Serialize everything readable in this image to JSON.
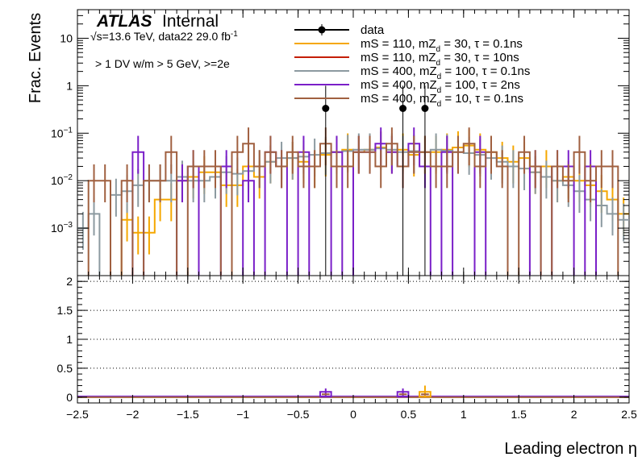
{
  "chart_data": {
    "type": "histogram",
    "atlas_label": "ATLAS",
    "atlas_sublabel": "Internal",
    "energy_label": "√s=13.6 TeV, data22 29.0 fb",
    "energy_unit_exp": "-1",
    "selection_label": "> 1 DV w/m > 5 GeV, >=2e",
    "xlabel": "Leading electron η",
    "ylabel": "Frac. Events",
    "xlim": [
      -2.5,
      2.5
    ],
    "x_ticks": [
      -2.5,
      -2,
      -1.5,
      -1,
      -0.5,
      0,
      0.5,
      1,
      1.5,
      2,
      2.5
    ],
    "x_tick_labels": [
      "−2.5",
      "−2",
      "−1.5",
      "−1",
      "−0.5",
      "0",
      "0.5",
      "1",
      "1.5",
      "2",
      "2.5"
    ],
    "top": {
      "yscale": "log",
      "ylim": [
        0.0001,
        40
      ],
      "y_ticks": [
        0.001,
        0.01,
        0.1,
        1,
        10
      ],
      "y_tick_labels": [
        [
          "10",
          "−3"
        ],
        [
          "10",
          "−2"
        ],
        [
          "10",
          "−1"
        ],
        [
          "1",
          ""
        ],
        [
          "10",
          ""
        ]
      ]
    },
    "ratio": {
      "ylim": [
        -0.1,
        2.1
      ],
      "y_ticks": [
        0,
        0.5,
        1,
        1.5,
        2
      ],
      "y_tick_labels": [
        "0",
        "0.5",
        "1",
        "1.5",
        "2"
      ],
      "gridlines": [
        0.5,
        1,
        1.5,
        2
      ]
    },
    "legend": [
      {
        "label": "data",
        "color": "#000000",
        "marker": true
      },
      {
        "label": "mS = 110, mZ",
        "sub": "d",
        "tail": " = 30, τ = 0.1ns",
        "color": "#f5a700"
      },
      {
        "label": "mS = 110, mZ",
        "sub": "d",
        "tail": " = 30, τ = 10ns",
        "color": "#c41e04"
      },
      {
        "label": "mS = 400, mZ",
        "sub": "d",
        "tail": " = 100, τ = 0.1ns",
        "color": "#8c9aa0"
      },
      {
        "label": "mS = 400, mZ",
        "sub": "d",
        "tail": " = 100, τ = 2ns",
        "color": "#7a1fc8"
      },
      {
        "label": "mS = 400, mZ",
        "sub": "d",
        "tail": " = 10, τ = 0.1ns",
        "color": "#a06040"
      }
    ],
    "data_points": [
      {
        "x": -0.25,
        "y": 0.333,
        "ratio": 0.05
      },
      {
        "x": 0.45,
        "y": 0.333,
        "ratio": 0.05
      },
      {
        "x": 0.65,
        "y": 0.333,
        "ratio": 0.05
      }
    ],
    "bin_edges_start": -2.5,
    "bin_width": 0.1,
    "series": [
      {
        "color": "#f5a700",
        "values": [
          0,
          0,
          0,
          0,
          0.0015,
          0.0008,
          0.0008,
          0.004,
          0.004,
          0.01,
          0.012,
          0.015,
          0.015,
          0.008,
          0.008,
          0.02,
          0.012,
          0.025,
          0.02,
          0.03,
          0.025,
          0.02,
          0.035,
          0.04,
          0.045,
          0.04,
          0.045,
          0.05,
          0.04,
          0.045,
          0.035,
          0.04,
          0.04,
          0.045,
          0.05,
          0.055,
          0.045,
          0.04,
          0.03,
          0.025,
          0.03,
          0.015,
          0.02,
          0.01,
          0.012,
          0.01,
          0.008,
          0.006,
          0.004,
          0.002
        ]
      },
      {
        "color": "#8c9aa0",
        "values": [
          0.001,
          0.002,
          0,
          0.005,
          0.006,
          0.008,
          0.01,
          0.01,
          0.01,
          0.012,
          0.01,
          0.01,
          0.012,
          0.015,
          0.014,
          0.016,
          0.02,
          0.025,
          0.03,
          0.03,
          0.032,
          0.035,
          0.038,
          0.04,
          0.042,
          0.045,
          0.045,
          0.048,
          0.045,
          0.04,
          0.042,
          0.04,
          0.045,
          0.043,
          0.04,
          0.038,
          0.035,
          0.03,
          0.025,
          0.02,
          0.018,
          0.015,
          0.012,
          0.01,
          0.008,
          0.006,
          0.004,
          0.003,
          0.002,
          0.0015
        ]
      },
      {
        "color": "#7a1fc8",
        "values": [
          0,
          0,
          0,
          0,
          0,
          0.04,
          0,
          0,
          0,
          0.01,
          0.02,
          0,
          0,
          0.02,
          0,
          0.01,
          0,
          0.04,
          0.02,
          0,
          0.04,
          0,
          0,
          0.04,
          0,
          0.04,
          0.04,
          0.06,
          0.04,
          0.02,
          0.06,
          0.02,
          0,
          0.04,
          0,
          0,
          0.04,
          0,
          0,
          0,
          0,
          0.02,
          0,
          0.02,
          0.02,
          0,
          0.02,
          0,
          0,
          0
        ]
      },
      {
        "color": "#a06040",
        "values": [
          0,
          0.01,
          0.01,
          0,
          0.01,
          0,
          0.01,
          0.01,
          0.04,
          0,
          0.02,
          0.02,
          0.02,
          0,
          0.04,
          0.06,
          0.02,
          0.04,
          0.02,
          0.04,
          0.02,
          0.02,
          0.06,
          0.02,
          0.02,
          0.04,
          0.04,
          0.02,
          0.06,
          0.02,
          0.04,
          0.04,
          0.02,
          0.02,
          0.04,
          0.06,
          0.02,
          0.04,
          0.02,
          0,
          0.04,
          0.02,
          0,
          0.02,
          0.01,
          0.04,
          0.01,
          0.02,
          0.02,
          0
        ]
      }
    ],
    "ratio_markers": [
      {
        "x": -0.25,
        "color": "#7a1fc8",
        "value": 0.05,
        "err": 0.1
      },
      {
        "x": 0.45,
        "color": "#7a1fc8",
        "value": 0.05,
        "err": 0.1
      },
      {
        "x": 0.65,
        "color": "#f5a700",
        "value": 0.05,
        "err": 0.15
      }
    ]
  }
}
